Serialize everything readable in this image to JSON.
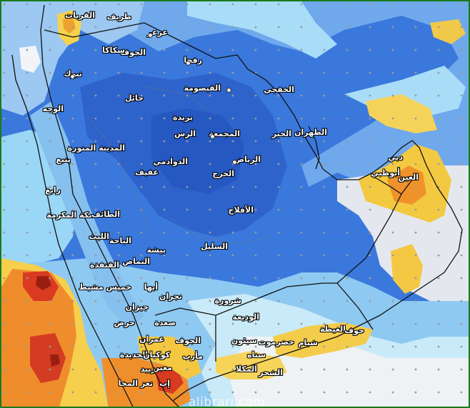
{
  "map": {
    "watermark": "alibrari.com",
    "cities": [
      {
        "id": "qurayyat",
        "label": "القريات"
      },
      {
        "id": "tarif",
        "label": "طريف"
      },
      {
        "id": "arar",
        "label": "عرعر"
      },
      {
        "id": "jouf",
        "label": "الجوف"
      },
      {
        "id": "sakaka",
        "label": "سكاكا"
      },
      {
        "id": "rafha",
        "label": "رفحا"
      },
      {
        "id": "tabuk",
        "label": "تبوك"
      },
      {
        "id": "qaisumah",
        "label": "القيصومة"
      },
      {
        "id": "khafji",
        "label": "الخفجي"
      },
      {
        "id": "hail",
        "label": "حائل"
      },
      {
        "id": "wajh",
        "label": "الوجه"
      },
      {
        "id": "buraydah",
        "label": "بريدة"
      },
      {
        "id": "rass",
        "label": "الرس"
      },
      {
        "id": "majmaah",
        "label": "المجمعة"
      },
      {
        "id": "khobar",
        "label": "الخبر"
      },
      {
        "id": "dhahran",
        "label": "الظهران"
      },
      {
        "id": "madinah",
        "label": "المدينة المنورة"
      },
      {
        "id": "yanbu",
        "label": "ينبع"
      },
      {
        "id": "dawadmi",
        "label": "الدوادمي"
      },
      {
        "id": "riyadh",
        "label": "الرياض"
      },
      {
        "id": "afif",
        "label": "عفيف"
      },
      {
        "id": "kharj",
        "label": "الخرج"
      },
      {
        "id": "dubai",
        "label": "دبي"
      },
      {
        "id": "abudhabi",
        "label": "أبوظبي"
      },
      {
        "id": "alain",
        "label": "العين"
      },
      {
        "id": "rabigh",
        "label": "رابغ"
      },
      {
        "id": "makkah",
        "label": "مكة المكرمة"
      },
      {
        "id": "taif",
        "label": "الطائف"
      },
      {
        "id": "aflaj",
        "label": "الأفلاج"
      },
      {
        "id": "laith",
        "label": "الليث"
      },
      {
        "id": "baha",
        "label": "الباحة"
      },
      {
        "id": "qunfudhah",
        "label": "القنفذة"
      },
      {
        "id": "bisha",
        "label": "بيشة"
      },
      {
        "id": "sulayyil",
        "label": "السليل"
      },
      {
        "id": "namas",
        "label": "النماص"
      },
      {
        "id": "abha",
        "label": "أبها"
      },
      {
        "id": "khamis",
        "label": "خميس مشيط"
      },
      {
        "id": "najran",
        "label": "نجران"
      },
      {
        "id": "sharurah",
        "label": "شرورة"
      },
      {
        "id": "jizan",
        "label": "جيزان"
      },
      {
        "id": "harad",
        "label": "حرض"
      },
      {
        "id": "saada",
        "label": "صعدة"
      },
      {
        "id": "wadiah",
        "label": "الوديعة"
      },
      {
        "id": "amran",
        "label": "عمران"
      },
      {
        "id": "hudaydah",
        "label": "الحديدة"
      },
      {
        "id": "kawkaban",
        "label": "كوكبان"
      },
      {
        "id": "yjouf",
        "label": "الجوف"
      },
      {
        "id": "marib",
        "label": "مأرب"
      },
      {
        "id": "sayun",
        "label": "سيئون"
      },
      {
        "id": "hadramout",
        "label": "حضرموت"
      },
      {
        "id": "shibam",
        "label": "شبام"
      },
      {
        "id": "ghaydah",
        "label": "الغيظة"
      },
      {
        "id": "hawf",
        "label": "حوف"
      },
      {
        "id": "zabid",
        "label": "زبيد"
      },
      {
        "id": "mabar",
        "label": "معبر"
      },
      {
        "id": "ibb",
        "label": "إب"
      },
      {
        "id": "taiz",
        "label": "تعز"
      },
      {
        "id": "mocha",
        "label": "المخا"
      },
      {
        "id": "sanaa",
        "label": "سناه"
      },
      {
        "id": "mukalla",
        "label": "المكلا"
      },
      {
        "id": "shihr",
        "label": "الشحر"
      }
    ]
  }
}
